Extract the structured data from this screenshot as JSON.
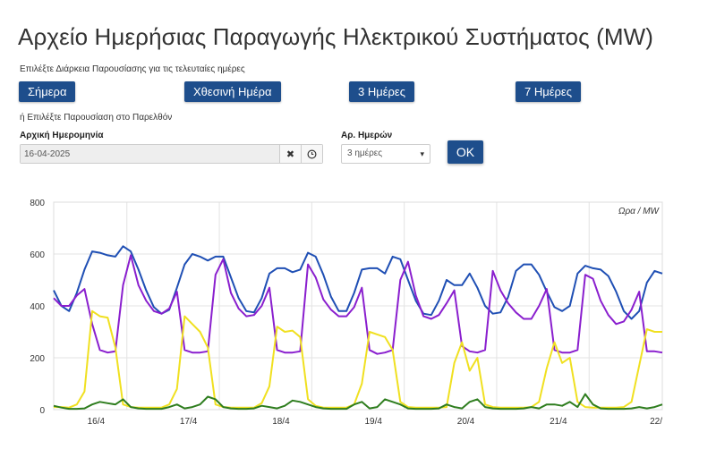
{
  "page": {
    "title": "Αρχείο Ημερήσιας Παραγωγής Ηλεκτρικού Συστήματος (MW)",
    "period_prompt": "Επιλέξτε Διάρκεια Παρουσίασης για τις τελευταίες ημέρες",
    "past_prompt": "ή Επιλέξτε Παρουσίαση στο Παρελθόν"
  },
  "buttons": {
    "today": "Σήμερα",
    "yesterday": "Χθεσινή Ημέρα",
    "three_days": "3 Ημέρες",
    "seven_days": "7 Ημέρες",
    "ok": "OK"
  },
  "form": {
    "start_date_label": "Αρχική Ημερομηνία",
    "start_date_value": "16-04-2025",
    "days_label": "Αρ. Ημερών",
    "days_value": "3 ημέρες"
  },
  "icons": {
    "clear": "close-icon",
    "clock": "clock-icon",
    "caret": "chevron-down-icon"
  },
  "chart_data": {
    "type": "line",
    "unit_label": "Ωρα / MW",
    "ylim": [
      0,
      800
    ],
    "y_ticks": [
      "0",
      "200",
      "400",
      "600",
      "800"
    ],
    "x_ticks": [
      "16/4",
      "17/4",
      "18/4",
      "19/4",
      "20/4",
      "21/4",
      "22/"
    ],
    "grid": true,
    "x_hours": [
      0,
      2,
      4,
      6,
      8,
      10,
      12,
      14,
      16,
      18,
      20,
      22,
      24,
      26,
      28,
      30,
      32,
      34,
      36,
      38,
      40,
      42,
      44,
      46,
      48,
      50,
      52,
      54,
      56,
      58,
      60,
      62,
      64,
      66,
      68,
      70,
      72,
      74,
      76,
      78,
      80,
      82,
      84,
      86,
      88,
      90,
      92,
      94,
      96,
      98,
      100,
      102,
      104,
      106,
      108,
      110,
      112,
      114,
      116,
      118,
      120,
      122,
      124,
      126,
      128,
      130,
      132,
      134,
      136,
      138,
      140,
      142,
      144,
      146,
      148,
      150,
      152,
      154,
      156,
      158
    ],
    "series": [
      {
        "color": "#1f4fb4",
        "values": [
          460,
          400,
          380,
          450,
          540,
          610,
          605,
          595,
          590,
          630,
          610,
          540,
          460,
          395,
          370,
          385,
          470,
          560,
          600,
          590,
          575,
          590,
          590,
          510,
          430,
          380,
          375,
          430,
          525,
          545,
          545,
          530,
          540,
          605,
          590,
          520,
          435,
          380,
          380,
          450,
          540,
          545,
          545,
          525,
          590,
          580,
          500,
          420,
          370,
          365,
          420,
          500,
          480,
          480,
          525,
          470,
          400,
          370,
          375,
          435,
          535,
          560,
          560,
          520,
          455,
          395,
          380,
          400,
          525,
          555,
          545,
          540,
          515,
          455,
          380,
          350,
          380,
          490,
          535,
          525
        ]
      },
      {
        "color": "#8a1fce",
        "values": [
          430,
          400,
          400,
          440,
          465,
          330,
          230,
          220,
          225,
          480,
          595,
          480,
          420,
          380,
          370,
          390,
          455,
          230,
          220,
          220,
          225,
          520,
          580,
          450,
          390,
          360,
          365,
          400,
          470,
          230,
          220,
          220,
          225,
          560,
          510,
          425,
          385,
          360,
          360,
          395,
          470,
          230,
          215,
          220,
          230,
          500,
          570,
          440,
          360,
          350,
          365,
          410,
          460,
          245,
          225,
          220,
          230,
          535,
          460,
          410,
          375,
          350,
          350,
          400,
          465,
          230,
          220,
          220,
          230,
          520,
          505,
          420,
          365,
          330,
          340,
          385,
          455,
          225,
          225,
          220
        ]
      },
      {
        "color": "#f0e020",
        "values": [
          10,
          10,
          8,
          20,
          70,
          380,
          360,
          355,
          240,
          20,
          10,
          8,
          8,
          8,
          8,
          20,
          80,
          360,
          330,
          300,
          240,
          20,
          10,
          8,
          8,
          8,
          8,
          25,
          90,
          320,
          300,
          305,
          280,
          40,
          15,
          8,
          8,
          8,
          8,
          20,
          100,
          300,
          290,
          280,
          230,
          30,
          10,
          8,
          8,
          8,
          8,
          10,
          180,
          260,
          150,
          200,
          20,
          10,
          8,
          8,
          8,
          8,
          10,
          30,
          160,
          260,
          180,
          200,
          30,
          10,
          8,
          8,
          8,
          8,
          10,
          30,
          170,
          310,
          300,
          300
        ]
      },
      {
        "color": "#2e7d1e",
        "values": [
          15,
          8,
          3,
          3,
          5,
          20,
          30,
          25,
          20,
          40,
          10,
          5,
          3,
          3,
          3,
          10,
          20,
          5,
          10,
          20,
          50,
          40,
          10,
          5,
          3,
          3,
          5,
          15,
          10,
          5,
          15,
          35,
          30,
          20,
          10,
          5,
          3,
          3,
          3,
          20,
          30,
          5,
          10,
          40,
          30,
          20,
          5,
          3,
          3,
          3,
          5,
          20,
          10,
          5,
          30,
          40,
          10,
          5,
          3,
          3,
          3,
          5,
          10,
          5,
          20,
          20,
          15,
          30,
          10,
          60,
          20,
          5,
          3,
          3,
          3,
          5,
          10,
          5,
          10,
          20
        ]
      }
    ]
  }
}
